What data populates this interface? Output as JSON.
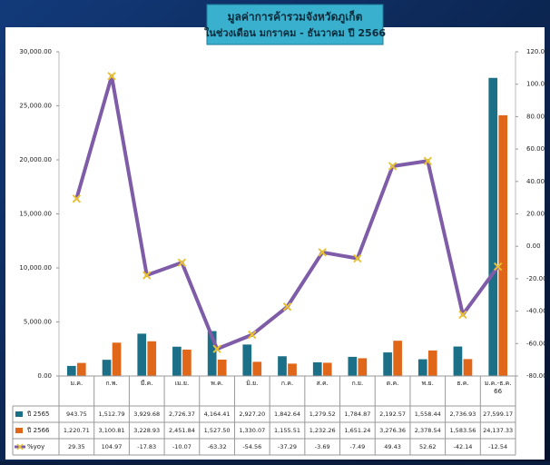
{
  "chart_data": {
    "type": "bar-line",
    "title": "มูลค่าการค้ารวมจังหวัดภูเก็ต",
    "subtitle": "ในช่วงเดือน มกราคม - ธันวาคม ปี 2566",
    "categories": [
      "ม.ค.",
      "ก.พ.",
      "มี.ค.",
      "เม.ย.",
      "พ.ค.",
      "มิ.ย.",
      "ก.ค.",
      "ส.ค.",
      "ก.ย.",
      "ต.ค.",
      "พ.ย.",
      "ธ.ค.",
      "ม.ค.-ธ.ค. 66"
    ],
    "series": [
      {
        "name": "ปี 2565",
        "color": "#1b6f86",
        "type": "bar",
        "values": [
          943.75,
          1512.79,
          3929.68,
          2726.37,
          4164.41,
          2927.2,
          1842.64,
          1279.52,
          1784.87,
          2192.57,
          1558.44,
          2736.93,
          27599.17
        ],
        "value_labels": [
          "943.75",
          "1,512.79",
          "3,929.68",
          "2,726.37",
          "4,164.41",
          "2,927.20",
          "1,842.64",
          "1,279.52",
          "1,784.87",
          "2,192.57",
          "1,558.44",
          "2,736.93",
          "27,599.17"
        ]
      },
      {
        "name": "ปี 2566",
        "color": "#e0661a",
        "type": "bar",
        "values": [
          1220.71,
          3100.81,
          3228.93,
          2451.84,
          1527.5,
          1330.07,
          1155.51,
          1232.26,
          1651.24,
          3276.36,
          2378.54,
          1583.56,
          24137.33
        ],
        "value_labels": [
          "1,220.71",
          "3,100.81",
          "3,228.93",
          "2,451.84",
          "1,527.50",
          "1,330.07",
          "1,155.51",
          "1,232.26",
          "1,651.24",
          "3,276.36",
          "2,378.54",
          "1,583.56",
          "24,137.33"
        ]
      },
      {
        "name": "%yoy",
        "color": "#7e5ca8",
        "type": "line",
        "axis": "y2",
        "marker_color": "#e8c232",
        "values": [
          29.35,
          104.97,
          -17.83,
          -10.07,
          -63.32,
          -54.56,
          -37.29,
          -3.69,
          -7.49,
          49.43,
          52.62,
          -42.14,
          -12.54
        ]
      }
    ],
    "ylim": [
      0,
      30000
    ],
    "yticks": [
      {
        "value": 0,
        "label": "0.00"
      },
      {
        "value": 5000,
        "label": "5,000.00"
      },
      {
        "value": 10000,
        "label": "10,000.00"
      },
      {
        "value": 15000,
        "label": "15,000.00"
      },
      {
        "value": 20000,
        "label": "20,000.00"
      },
      {
        "value": 25000,
        "label": "25,000.00"
      },
      {
        "value": 30000,
        "label": "30,000.00"
      }
    ],
    "y2lim": [
      -80,
      120
    ],
    "y2ticks": [
      {
        "value": -80,
        "label": "-80.00"
      },
      {
        "value": -60,
        "label": "-60.00"
      },
      {
        "value": -40,
        "label": "-40.00"
      },
      {
        "value": -20,
        "label": "-20.00"
      },
      {
        "value": 0,
        "label": "0.00"
      },
      {
        "value": 20,
        "label": "20.00"
      },
      {
        "value": 40,
        "label": "40.00"
      },
      {
        "value": 60,
        "label": "60.00"
      },
      {
        "value": 80,
        "label": "80.00"
      },
      {
        "value": 100,
        "label": "100.00"
      },
      {
        "value": 120,
        "label": "120.00"
      }
    ],
    "grid": false,
    "data_table": true
  }
}
